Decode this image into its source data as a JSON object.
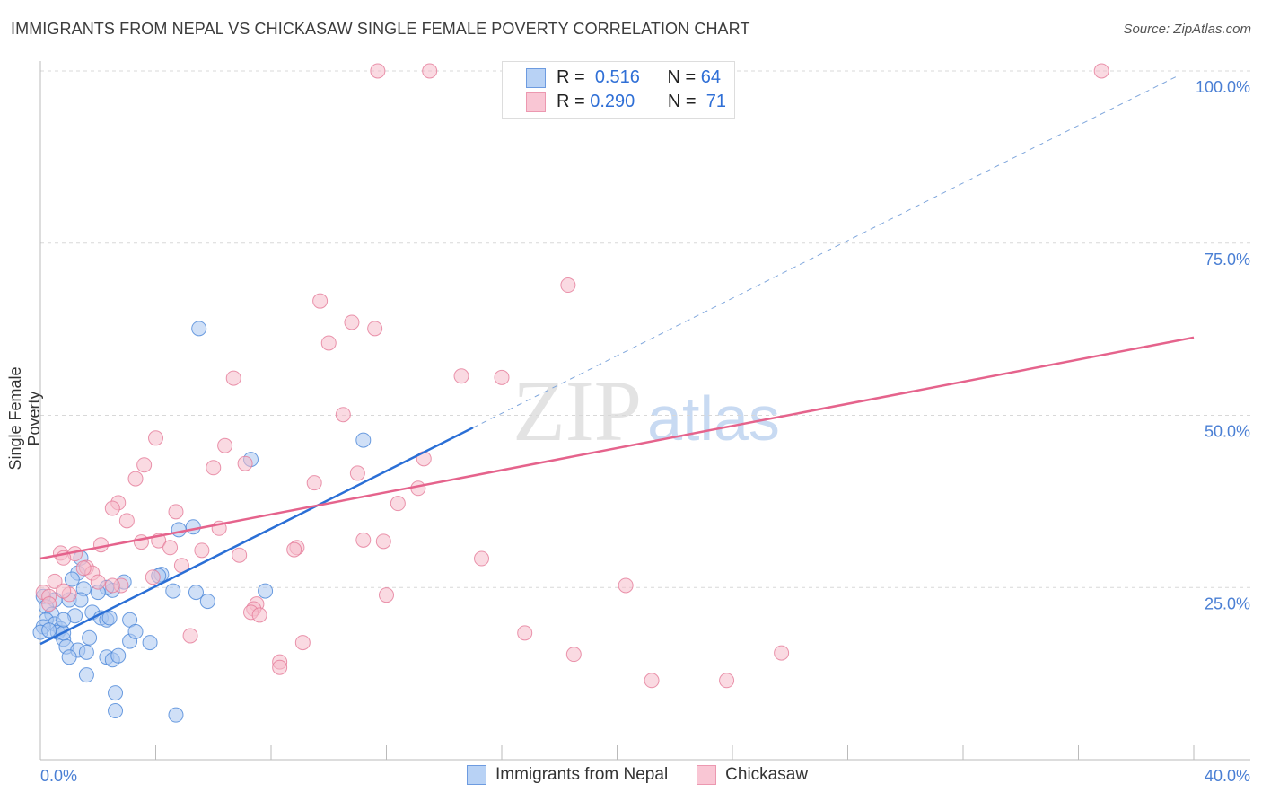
{
  "title": "IMMIGRANTS FROM NEPAL VS CHICKASAW SINGLE FEMALE POVERTY CORRELATION CHART",
  "source": "Source: ZipAtlas.com",
  "watermark": "ZIPatlas",
  "legend": {
    "rows": [
      {
        "r_label": "R =",
        "r": "0.516",
        "n_label": "N =",
        "n": "64"
      },
      {
        "r_label": "R =",
        "r": "0.290",
        "n_label": "N =",
        "n": "71"
      }
    ]
  },
  "chart_data": {
    "type": "scatter",
    "title": "IMMIGRANTS FROM NEPAL VS CHICKASAW SINGLE FEMALE POVERTY CORRELATION CHART",
    "xlabel": "",
    "ylabel": "Single Female Poverty",
    "xlim": [
      0,
      40
    ],
    "ylim": [
      0,
      100
    ],
    "x_tick_labels": [
      "0.0%",
      "40.0%"
    ],
    "y_tick_labels": [
      {
        "v": 25,
        "label": "25.0%"
      },
      {
        "v": 50,
        "label": "50.0%"
      },
      {
        "v": 75,
        "label": "75.0%"
      },
      {
        "v": 100,
        "label": "100.0%"
      }
    ],
    "grid": true,
    "legend_position": "top-center",
    "series": [
      {
        "name": "Immigrants from Nepal",
        "color": "#4a86d8",
        "fill": "#a9c7f0",
        "R": 0.516,
        "N": 64,
        "trend": {
          "x": [
            0,
            15.0
          ],
          "y": [
            16.8,
            48.2
          ],
          "dashed_to": [
            39.5,
            99.4
          ]
        },
        "points": [
          [
            5.5,
            62.6
          ],
          [
            11.2,
            46.4
          ],
          [
            7.3,
            43.6
          ],
          [
            5.3,
            33.8
          ],
          [
            4.8,
            33.4
          ],
          [
            4.2,
            26.9
          ],
          [
            4.1,
            26.7
          ],
          [
            2.9,
            25.8
          ],
          [
            2.5,
            24.6
          ],
          [
            2.3,
            25.0
          ],
          [
            1.4,
            29.3
          ],
          [
            1.3,
            27.1
          ],
          [
            1.1,
            26.2
          ],
          [
            1.5,
            24.8
          ],
          [
            1.0,
            23.2
          ],
          [
            1.4,
            23.2
          ],
          [
            0.5,
            23.2
          ],
          [
            0.1,
            23.7
          ],
          [
            0.2,
            22.2
          ],
          [
            0.4,
            21.1
          ],
          [
            1.2,
            20.9
          ],
          [
            1.8,
            21.4
          ],
          [
            2.1,
            20.6
          ],
          [
            2.3,
            20.3
          ],
          [
            3.1,
            20.3
          ],
          [
            2.4,
            20.6
          ],
          [
            0.2,
            20.3
          ],
          [
            0.5,
            19.7
          ],
          [
            0.1,
            19.3
          ],
          [
            0.7,
            19.0
          ],
          [
            0.0,
            18.5
          ],
          [
            0.6,
            18.5
          ],
          [
            0.8,
            17.5
          ],
          [
            1.7,
            17.7
          ],
          [
            3.1,
            17.2
          ],
          [
            3.8,
            17.0
          ],
          [
            0.9,
            16.4
          ],
          [
            1.3,
            15.9
          ],
          [
            1.6,
            15.6
          ],
          [
            1.0,
            14.9
          ],
          [
            2.3,
            14.9
          ],
          [
            2.5,
            14.5
          ],
          [
            2.7,
            15.1
          ],
          [
            1.6,
            12.3
          ],
          [
            2.6,
            9.7
          ],
          [
            2.6,
            7.1
          ],
          [
            4.7,
            6.5
          ],
          [
            5.4,
            24.3
          ],
          [
            5.8,
            23.0
          ],
          [
            7.8,
            24.5
          ],
          [
            4.6,
            24.5
          ],
          [
            3.3,
            18.6
          ],
          [
            0.3,
            18.8
          ],
          [
            0.8,
            18.4
          ],
          [
            2.0,
            24.3
          ],
          [
            0.8,
            20.3
          ]
        ]
      },
      {
        "name": "Chickasaw",
        "color": "#e57a98",
        "fill": "#f6bccb",
        "R": 0.29,
        "N": 71,
        "trend": {
          "x": [
            0,
            40
          ],
          "y": [
            29.2,
            61.3
          ]
        },
        "points": [
          [
            11.7,
            100
          ],
          [
            13.5,
            100
          ],
          [
            36.8,
            100
          ],
          [
            18.3,
            68.9
          ],
          [
            9.7,
            66.6
          ],
          [
            10.8,
            63.5
          ],
          [
            11.6,
            62.6
          ],
          [
            10.0,
            60.5
          ],
          [
            6.7,
            55.4
          ],
          [
            14.6,
            55.7
          ],
          [
            16.0,
            55.5
          ],
          [
            10.5,
            50.1
          ],
          [
            4.0,
            46.7
          ],
          [
            6.4,
            45.6
          ],
          [
            3.6,
            42.8
          ],
          [
            6.0,
            42.4
          ],
          [
            7.1,
            43.0
          ],
          [
            11.0,
            41.6
          ],
          [
            13.3,
            43.7
          ],
          [
            9.5,
            40.2
          ],
          [
            3.3,
            40.8
          ],
          [
            13.1,
            39.4
          ],
          [
            12.4,
            37.2
          ],
          [
            2.7,
            37.3
          ],
          [
            2.5,
            36.5
          ],
          [
            3.0,
            34.7
          ],
          [
            4.7,
            36.0
          ],
          [
            6.2,
            33.6
          ],
          [
            3.5,
            31.6
          ],
          [
            4.1,
            31.8
          ],
          [
            4.5,
            30.8
          ],
          [
            11.2,
            31.9
          ],
          [
            11.9,
            31.7
          ],
          [
            8.9,
            30.8
          ],
          [
            8.8,
            30.5
          ],
          [
            5.6,
            30.4
          ],
          [
            2.1,
            31.2
          ],
          [
            1.2,
            29.9
          ],
          [
            0.7,
            30.0
          ],
          [
            0.8,
            29.3
          ],
          [
            15.3,
            29.2
          ],
          [
            6.9,
            29.7
          ],
          [
            4.9,
            28.2
          ],
          [
            1.6,
            27.9
          ],
          [
            1.8,
            27.1
          ],
          [
            1.5,
            27.8
          ],
          [
            3.9,
            26.5
          ],
          [
            2.0,
            25.8
          ],
          [
            2.8,
            25.3
          ],
          [
            2.5,
            25.3
          ],
          [
            0.5,
            25.9
          ],
          [
            1.0,
            24.0
          ],
          [
            0.8,
            24.5
          ],
          [
            0.1,
            24.3
          ],
          [
            0.3,
            23.7
          ],
          [
            20.3,
            25.3
          ],
          [
            12.0,
            23.9
          ],
          [
            7.5,
            22.6
          ],
          [
            7.4,
            21.9
          ],
          [
            7.3,
            21.4
          ],
          [
            7.6,
            21.0
          ],
          [
            5.2,
            18.0
          ],
          [
            16.8,
            18.4
          ],
          [
            9.1,
            17.0
          ],
          [
            18.5,
            15.3
          ],
          [
            25.7,
            15.5
          ],
          [
            8.3,
            14.2
          ],
          [
            8.3,
            13.4
          ],
          [
            21.2,
            11.5
          ],
          [
            23.8,
            11.5
          ],
          [
            0.3,
            22.6
          ]
        ]
      }
    ]
  }
}
